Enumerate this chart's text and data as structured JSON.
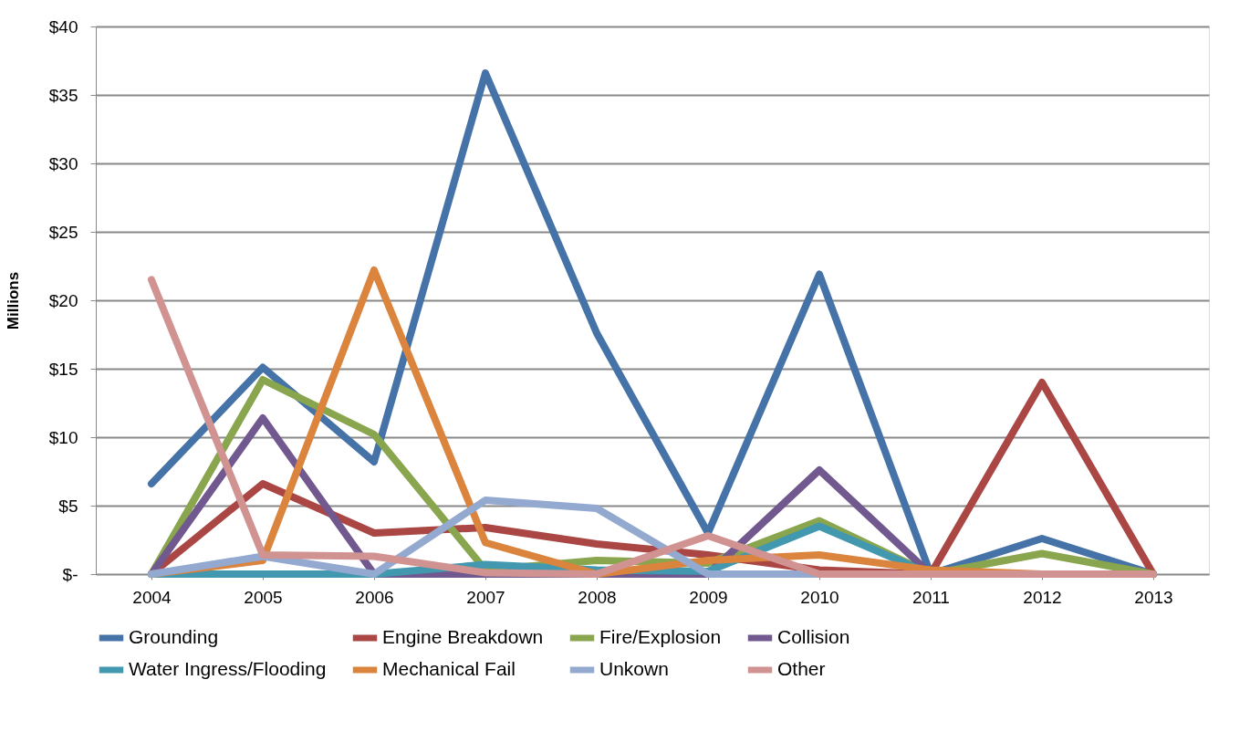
{
  "chart_data": {
    "type": "line",
    "ylabel": "Millions",
    "categories": [
      "2004",
      "2005",
      "2006",
      "2007",
      "2008",
      "2009",
      "2010",
      "2011",
      "2012",
      "2013"
    ],
    "series": [
      {
        "name": "Grounding",
        "color": "#4572a7",
        "values": [
          6.6,
          15.1,
          8.2,
          36.6,
          17.6,
          3.0,
          21.9,
          0,
          2.6,
          0
        ]
      },
      {
        "name": "Engine Breakdown",
        "color": "#aa4643",
        "values": [
          0,
          6.6,
          3.0,
          3.4,
          2.2,
          1.4,
          0.3,
          0,
          14.0,
          0
        ]
      },
      {
        "name": "Fire/Explosion",
        "color": "#89a54e",
        "values": [
          0,
          14.2,
          10.2,
          0.3,
          1.0,
          0.8,
          3.9,
          0,
          1.5,
          0
        ]
      },
      {
        "name": "Collision",
        "color": "#71588f",
        "values": [
          0,
          11.4,
          0,
          0,
          0,
          0,
          7.6,
          0,
          0,
          0
        ]
      },
      {
        "name": "Water Ingress/Flooding",
        "color": "#4198af",
        "values": [
          0,
          0,
          0,
          0.7,
          0.3,
          0.2,
          3.5,
          0,
          0,
          0
        ]
      },
      {
        "name": "Mechanical Fail",
        "color": "#db843d",
        "values": [
          0,
          1.0,
          22.2,
          2.3,
          0,
          1.0,
          1.4,
          0.3,
          0,
          0
        ]
      },
      {
        "name": "Unkown",
        "color": "#93a9cf",
        "values": [
          0,
          1.3,
          0,
          5.4,
          4.8,
          0,
          0,
          0,
          null,
          null
        ]
      },
      {
        "name": "Other",
        "color": "#d19392",
        "values": [
          21.5,
          1.4,
          1.3,
          0.1,
          0,
          2.8,
          0,
          0,
          0,
          0
        ]
      }
    ],
    "ylim": [
      0,
      40
    ],
    "yticks": [
      {
        "value": 0,
        "label": "$-"
      },
      {
        "value": 5,
        "label": "$5"
      },
      {
        "value": 10,
        "label": "$10"
      },
      {
        "value": 15,
        "label": "$15"
      },
      {
        "value": 20,
        "label": "$20"
      },
      {
        "value": 25,
        "label": "$25"
      },
      {
        "value": 30,
        "label": "$30"
      },
      {
        "value": 35,
        "label": "$35"
      },
      {
        "value": 40,
        "label": "$40"
      }
    ],
    "grid": "y",
    "legend": "bottom",
    "marker": "none",
    "line_style": "solid"
  }
}
